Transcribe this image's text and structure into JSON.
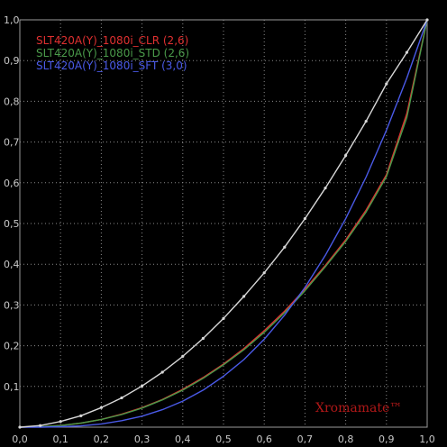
{
  "chart_data": {
    "type": "line",
    "title": "",
    "xlabel": "",
    "ylabel": "",
    "xlim": [
      0,
      1
    ],
    "ylim": [
      0,
      1
    ],
    "grid": true,
    "legend_position": "top-left",
    "x_ticks": [
      "0,0",
      "0,1",
      "0,2",
      "0,3",
      "0,4",
      "0,5",
      "0,6",
      "0,7",
      "0,8",
      "0,9",
      "1,0"
    ],
    "y_ticks": [
      "0,0",
      "0,1",
      "0,2",
      "0,3",
      "0,4",
      "0,5",
      "0,6",
      "0,7",
      "0,8",
      "0,9",
      "1,0"
    ],
    "series": [
      {
        "name": "SLT420A(Y)_1080i_CLR (2,6)",
        "color": "#e03030",
        "x": [
          0,
          0.05,
          0.1,
          0.15,
          0.2,
          0.25,
          0.3,
          0.35,
          0.4,
          0.45,
          0.5,
          0.55,
          0.6,
          0.65,
          0.7,
          0.75,
          0.8,
          0.85,
          0.9,
          0.95,
          1.0
        ],
        "y": [
          0,
          0.001,
          0.004,
          0.01,
          0.019,
          0.032,
          0.048,
          0.068,
          0.093,
          0.122,
          0.155,
          0.193,
          0.237,
          0.285,
          0.339,
          0.397,
          0.46,
          0.533,
          0.62,
          0.77,
          1.0
        ]
      },
      {
        "name": "SLT420A(Y)_1080i_STD (2,6)",
        "color": "#4a9a4a",
        "x": [
          0,
          0.05,
          0.1,
          0.15,
          0.2,
          0.25,
          0.3,
          0.35,
          0.4,
          0.45,
          0.5,
          0.55,
          0.6,
          0.65,
          0.7,
          0.75,
          0.8,
          0.85,
          0.9,
          0.95,
          1.0
        ],
        "y": [
          0,
          0.001,
          0.004,
          0.01,
          0.019,
          0.031,
          0.047,
          0.067,
          0.091,
          0.12,
          0.153,
          0.19,
          0.233,
          0.281,
          0.335,
          0.394,
          0.456,
          0.528,
          0.615,
          0.76,
          1.0
        ]
      },
      {
        "name": "SLT420A(Y)_1080i_SFT (3,0)",
        "color": "#4a5ae8",
        "x": [
          0,
          0.05,
          0.1,
          0.15,
          0.2,
          0.25,
          0.3,
          0.35,
          0.4,
          0.45,
          0.5,
          0.55,
          0.6,
          0.65,
          0.7,
          0.75,
          0.8,
          0.85,
          0.9,
          0.95,
          1.0
        ],
        "y": [
          0,
          0.0001,
          0.001,
          0.003,
          0.008,
          0.016,
          0.027,
          0.043,
          0.064,
          0.091,
          0.125,
          0.166,
          0.216,
          0.275,
          0.343,
          0.422,
          0.512,
          0.614,
          0.729,
          0.857,
          1.0
        ]
      },
      {
        "name": "",
        "color": "#d8d8d8",
        "markers": true,
        "x": [
          0,
          0.05,
          0.1,
          0.15,
          0.2,
          0.25,
          0.3,
          0.35,
          0.4,
          0.45,
          0.5,
          0.55,
          0.6,
          0.65,
          0.7,
          0.75,
          0.8,
          0.85,
          0.9,
          0.95,
          1.0
        ],
        "y": [
          0,
          0.004,
          0.014,
          0.028,
          0.048,
          0.072,
          0.101,
          0.135,
          0.174,
          0.218,
          0.267,
          0.321,
          0.379,
          0.442,
          0.512,
          0.587,
          0.667,
          0.751,
          0.843,
          0.92,
          1.0
        ]
      }
    ],
    "annotations": [
      {
        "text": "Xromamate™",
        "color": "#b01818"
      }
    ]
  }
}
